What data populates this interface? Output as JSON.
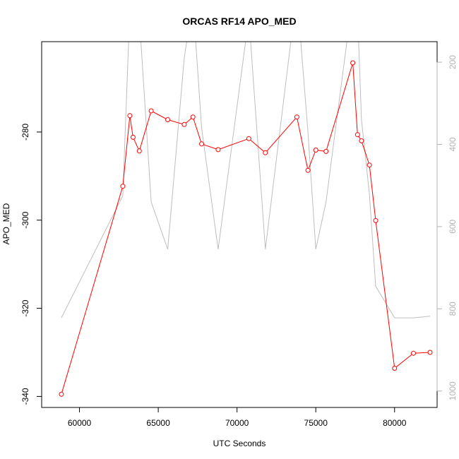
{
  "chart_data": {
    "type": "line",
    "title": "ORCAS RF14 APO_MED",
    "xlabel": "UTC Seconds",
    "ylabel": "APO_MED",
    "xlim": [
      57600,
      82700
    ],
    "ylim": [
      -342.5,
      -259.5
    ],
    "y2lim": [
      1040,
      150
    ],
    "x_ticks": [
      {
        "value": 60000,
        "label": "60000"
      },
      {
        "value": 65000,
        "label": "65000"
      },
      {
        "value": 70000,
        "label": "70000"
      },
      {
        "value": 75000,
        "label": "75000"
      },
      {
        "value": 80000,
        "label": "80000"
      }
    ],
    "y_ticks": [
      {
        "value": -340,
        "label": "-340"
      },
      {
        "value": -320,
        "label": "-320"
      },
      {
        "value": -300,
        "label": "-300"
      },
      {
        "value": -280,
        "label": "-280"
      }
    ],
    "y2_ticks": [
      {
        "value": 200,
        "label": "200"
      },
      {
        "value": 400,
        "label": "400"
      },
      {
        "value": 600,
        "label": "600"
      },
      {
        "value": 800,
        "label": "800"
      },
      {
        "value": 1000,
        "label": "1000"
      }
    ],
    "series": [
      {
        "color": "#ff0000",
        "marker": "open-circle",
        "x": [
          58850,
          62750,
          63200,
          63400,
          63800,
          64550,
          65600,
          66650,
          67200,
          67750,
          68800,
          70750,
          71800,
          73800,
          74500,
          75000,
          75650,
          77350,
          77650,
          77900,
          78400,
          78800,
          80000,
          81200,
          82250
        ],
        "y": [
          -339.5,
          -292.3,
          -276.3,
          -281.2,
          -284.3,
          -275.2,
          -277.2,
          -278.3,
          -276.6,
          -282.7,
          -284.0,
          -281.5,
          -284.7,
          -276.6,
          -288.7,
          -284.1,
          -284.4,
          -264.3,
          -280.6,
          -282.0,
          -287.5,
          -300.1,
          -333.6,
          -330.2,
          -330.0
        ]
      },
      {
        "color": "#bebebe",
        "axis": "right",
        "x": [
          58850,
          62750,
          63200,
          63500,
          63800,
          64550,
          65600,
          66650,
          67200,
          67750,
          68800,
          70750,
          71800,
          73800,
          74500,
          75000,
          75650,
          77350,
          77650,
          77900,
          78400,
          78800,
          80000,
          81200,
          82250
        ],
        "y": [
          822,
          525,
          70,
          40,
          90,
          540,
          655,
          190,
          50,
          360,
          655,
          90,
          655,
          30,
          370,
          655,
          540,
          40,
          80,
          340,
          520,
          745,
          822,
          822,
          818
        ]
      }
    ]
  }
}
